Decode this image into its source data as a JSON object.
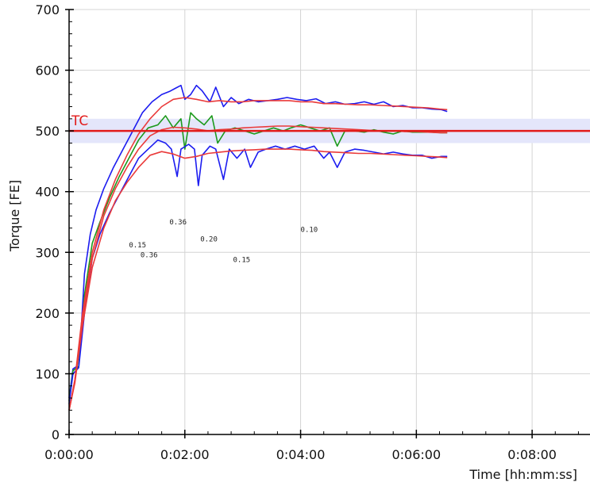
{
  "chart_data": {
    "type": "line",
    "title": "",
    "xlabel": "Time [hh:mm:ss]",
    "ylabel": "Torque [FE]",
    "xlim": [
      0,
      540
    ],
    "ylim": [
      0,
      700
    ],
    "x_ticks": [
      {
        "value": 0,
        "label": "0:00:00"
      },
      {
        "value": 120,
        "label": "0:02:00"
      },
      {
        "value": 240,
        "label": "0:04:00"
      },
      {
        "value": 360,
        "label": "0:06:00"
      },
      {
        "value": 480,
        "label": "0:08:00"
      }
    ],
    "y_ticks": [
      {
        "value": 0,
        "label": "0"
      },
      {
        "value": 100,
        "label": "100"
      },
      {
        "value": 200,
        "label": "200"
      },
      {
        "value": 300,
        "label": "300"
      },
      {
        "value": 400,
        "label": "400"
      },
      {
        "value": 500,
        "label": "500"
      },
      {
        "value": 600,
        "label": "600"
      },
      {
        "value": 700,
        "label": "700"
      }
    ],
    "grid": true,
    "reference": {
      "label": "TC",
      "value": 500,
      "band": [
        480,
        520
      ],
      "color": "#e21b1b",
      "band_color": "#e4e6fb"
    },
    "series": [
      {
        "name": "",
        "color": "#1c1cf0",
        "points": [
          [
            0,
            60
          ],
          [
            4,
            108
          ],
          [
            8,
            112
          ],
          [
            12,
            160
          ],
          [
            16,
            265
          ],
          [
            22,
            330
          ],
          [
            28,
            370
          ],
          [
            36,
            405
          ],
          [
            46,
            440
          ],
          [
            56,
            470
          ],
          [
            66,
            500
          ],
          [
            76,
            530
          ],
          [
            86,
            548
          ],
          [
            96,
            560
          ],
          [
            104,
            565
          ],
          [
            110,
            570
          ],
          [
            116,
            575
          ],
          [
            120,
            552
          ],
          [
            126,
            560
          ],
          [
            132,
            575
          ],
          [
            138,
            566
          ],
          [
            146,
            548
          ],
          [
            152,
            572
          ],
          [
            160,
            540
          ],
          [
            168,
            555
          ],
          [
            176,
            545
          ],
          [
            186,
            552
          ],
          [
            196,
            548
          ],
          [
            206,
            550
          ],
          [
            216,
            552
          ],
          [
            226,
            555
          ],
          [
            236,
            552
          ],
          [
            246,
            550
          ],
          [
            256,
            553
          ],
          [
            266,
            545
          ],
          [
            276,
            548
          ],
          [
            286,
            544
          ],
          [
            296,
            545
          ],
          [
            306,
            548
          ],
          [
            316,
            544
          ],
          [
            326,
            548
          ],
          [
            336,
            540
          ],
          [
            346,
            542
          ],
          [
            356,
            538
          ],
          [
            366,
            538
          ],
          [
            376,
            536
          ],
          [
            386,
            535
          ],
          [
            392,
            532
          ]
        ]
      },
      {
        "name": "",
        "color": "#1c9a1c",
        "points": [
          [
            0,
            55
          ],
          [
            4,
            105
          ],
          [
            10,
            112
          ],
          [
            16,
            230
          ],
          [
            24,
            315
          ],
          [
            32,
            350
          ],
          [
            42,
            390
          ],
          [
            52,
            425
          ],
          [
            62,
            455
          ],
          [
            72,
            485
          ],
          [
            82,
            505
          ],
          [
            92,
            510
          ],
          [
            100,
            525
          ],
          [
            108,
            505
          ],
          [
            116,
            520
          ],
          [
            120,
            470
          ],
          [
            126,
            530
          ],
          [
            132,
            520
          ],
          [
            140,
            510
          ],
          [
            148,
            525
          ],
          [
            154,
            480
          ],
          [
            162,
            500
          ],
          [
            172,
            505
          ],
          [
            182,
            500
          ],
          [
            192,
            495
          ],
          [
            202,
            500
          ],
          [
            212,
            505
          ],
          [
            222,
            500
          ],
          [
            230,
            505
          ],
          [
            240,
            510
          ],
          [
            250,
            505
          ],
          [
            260,
            500
          ],
          [
            270,
            505
          ],
          [
            278,
            475
          ],
          [
            286,
            500
          ],
          [
            296,
            500
          ],
          [
            306,
            498
          ],
          [
            316,
            502
          ],
          [
            326,
            498
          ],
          [
            336,
            495
          ],
          [
            346,
            500
          ],
          [
            356,
            498
          ],
          [
            366,
            498
          ],
          [
            376,
            498
          ],
          [
            386,
            497
          ],
          [
            392,
            497
          ]
        ]
      },
      {
        "name": "",
        "color": "#1c1cf0",
        "points": [
          [
            0,
            50
          ],
          [
            4,
            100
          ],
          [
            10,
            110
          ],
          [
            16,
            200
          ],
          [
            24,
            290
          ],
          [
            32,
            330
          ],
          [
            42,
            365
          ],
          [
            52,
            395
          ],
          [
            62,
            425
          ],
          [
            72,
            455
          ],
          [
            82,
            470
          ],
          [
            92,
            485
          ],
          [
            100,
            480
          ],
          [
            106,
            470
          ],
          [
            112,
            425
          ],
          [
            116,
            470
          ],
          [
            124,
            478
          ],
          [
            130,
            470
          ],
          [
            134,
            410
          ],
          [
            138,
            460
          ],
          [
            146,
            475
          ],
          [
            152,
            470
          ],
          [
            160,
            420
          ],
          [
            166,
            470
          ],
          [
            174,
            455
          ],
          [
            182,
            470
          ],
          [
            188,
            440
          ],
          [
            196,
            465
          ],
          [
            204,
            470
          ],
          [
            214,
            475
          ],
          [
            224,
            470
          ],
          [
            234,
            475
          ],
          [
            244,
            470
          ],
          [
            254,
            475
          ],
          [
            264,
            455
          ],
          [
            270,
            465
          ],
          [
            278,
            440
          ],
          [
            286,
            465
          ],
          [
            296,
            470
          ],
          [
            306,
            468
          ],
          [
            316,
            465
          ],
          [
            326,
            462
          ],
          [
            336,
            465
          ],
          [
            346,
            462
          ],
          [
            356,
            460
          ],
          [
            366,
            460
          ],
          [
            376,
            455
          ],
          [
            386,
            458
          ],
          [
            392,
            458
          ]
        ]
      },
      {
        "name": "",
        "color": "#ea3a3a",
        "points": [
          [
            0,
            40
          ],
          [
            6,
            90
          ],
          [
            14,
            200
          ],
          [
            24,
            300
          ],
          [
            36,
            370
          ],
          [
            48,
            420
          ],
          [
            60,
            460
          ],
          [
            72,
            495
          ],
          [
            84,
            520
          ],
          [
            96,
            540
          ],
          [
            108,
            552
          ],
          [
            120,
            555
          ],
          [
            132,
            552
          ],
          [
            144,
            548
          ],
          [
            156,
            550
          ],
          [
            168,
            548
          ],
          [
            180,
            548
          ],
          [
            192,
            550
          ],
          [
            204,
            550
          ],
          [
            216,
            550
          ],
          [
            228,
            550
          ],
          [
            240,
            548
          ],
          [
            252,
            548
          ],
          [
            264,
            545
          ],
          [
            276,
            545
          ],
          [
            288,
            544
          ],
          [
            300,
            543
          ],
          [
            312,
            543
          ],
          [
            324,
            542
          ],
          [
            336,
            541
          ],
          [
            348,
            540
          ],
          [
            360,
            539
          ],
          [
            372,
            538
          ],
          [
            384,
            536
          ],
          [
            392,
            535
          ]
        ]
      },
      {
        "name": "",
        "color": "#ea3a3a",
        "points": [
          [
            0,
            40
          ],
          [
            6,
            90
          ],
          [
            14,
            190
          ],
          [
            24,
            290
          ],
          [
            36,
            360
          ],
          [
            48,
            405
          ],
          [
            60,
            440
          ],
          [
            72,
            470
          ],
          [
            84,
            492
          ],
          [
            96,
            502
          ],
          [
            108,
            506
          ],
          [
            120,
            505
          ],
          [
            132,
            503
          ],
          [
            144,
            500
          ],
          [
            156,
            502
          ],
          [
            168,
            503
          ],
          [
            180,
            505
          ],
          [
            192,
            506
          ],
          [
            204,
            507
          ],
          [
            216,
            508
          ],
          [
            228,
            508
          ],
          [
            240,
            507
          ],
          [
            252,
            506
          ],
          [
            264,
            505
          ],
          [
            276,
            504
          ],
          [
            288,
            503
          ],
          [
            300,
            502
          ],
          [
            312,
            501
          ],
          [
            324,
            500
          ],
          [
            336,
            500
          ],
          [
            348,
            499
          ],
          [
            360,
            499
          ],
          [
            372,
            498
          ],
          [
            384,
            497
          ],
          [
            392,
            497
          ]
        ]
      },
      {
        "name": "",
        "color": "#ea3a3a",
        "points": [
          [
            0,
            40
          ],
          [
            6,
            85
          ],
          [
            14,
            180
          ],
          [
            24,
            275
          ],
          [
            36,
            340
          ],
          [
            48,
            385
          ],
          [
            60,
            415
          ],
          [
            72,
            440
          ],
          [
            84,
            460
          ],
          [
            96,
            466
          ],
          [
            108,
            462
          ],
          [
            120,
            455
          ],
          [
            132,
            458
          ],
          [
            144,
            463
          ],
          [
            156,
            465
          ],
          [
            168,
            467
          ],
          [
            180,
            468
          ],
          [
            192,
            469
          ],
          [
            204,
            470
          ],
          [
            216,
            470
          ],
          [
            228,
            470
          ],
          [
            240,
            469
          ],
          [
            252,
            468
          ],
          [
            264,
            466
          ],
          [
            276,
            465
          ],
          [
            288,
            464
          ],
          [
            300,
            463
          ],
          [
            312,
            463
          ],
          [
            324,
            462
          ],
          [
            336,
            461
          ],
          [
            348,
            460
          ],
          [
            360,
            459
          ],
          [
            372,
            458
          ],
          [
            384,
            457
          ],
          [
            392,
            456
          ]
        ]
      }
    ],
    "annotations": [
      {
        "text": "0.15",
        "x": 62,
        "y": 308
      },
      {
        "text": "0.36",
        "x": 74,
        "y": 292
      },
      {
        "text": "0.36",
        "x": 104,
        "y": 346
      },
      {
        "text": "0.20",
        "x": 136,
        "y": 318
      },
      {
        "text": "0.15",
        "x": 170,
        "y": 284
      },
      {
        "text": "0.10",
        "x": 240,
        "y": 334
      }
    ]
  }
}
